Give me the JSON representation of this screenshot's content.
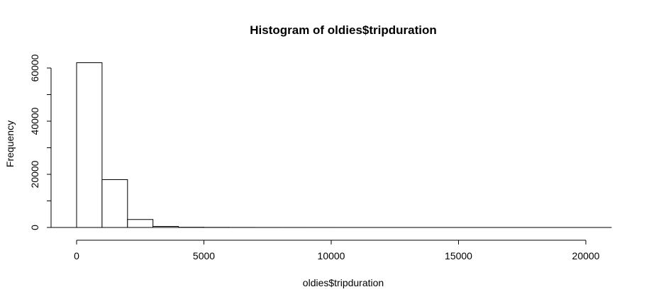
{
  "chart_data": {
    "type": "bar",
    "title": "Histogram of oldies$tripduration",
    "xlabel": "oldies$tripduration",
    "ylabel": "Frequency",
    "bin_width": 1000,
    "bins": [
      {
        "start": 0,
        "end": 1000,
        "count": 62000
      },
      {
        "start": 1000,
        "end": 2000,
        "count": 18000
      },
      {
        "start": 2000,
        "end": 3000,
        "count": 3000
      },
      {
        "start": 3000,
        "end": 4000,
        "count": 400
      },
      {
        "start": 4000,
        "end": 5000,
        "count": 80
      },
      {
        "start": 5000,
        "end": 6000,
        "count": 40
      },
      {
        "start": 6000,
        "end": 7000,
        "count": 20
      },
      {
        "start": 7000,
        "end": 8000,
        "count": 10
      },
      {
        "start": 8000,
        "end": 9000,
        "count": 5
      },
      {
        "start": 9000,
        "end": 10000,
        "count": 3
      },
      {
        "start": 10000,
        "end": 11000,
        "count": 2
      },
      {
        "start": 11000,
        "end": 12000,
        "count": 1
      },
      {
        "start": 12000,
        "end": 13000,
        "count": 1
      },
      {
        "start": 13000,
        "end": 14000,
        "count": 1
      },
      {
        "start": 14000,
        "end": 15000,
        "count": 1
      },
      {
        "start": 15000,
        "end": 16000,
        "count": 1
      },
      {
        "start": 16000,
        "end": 17000,
        "count": 1
      },
      {
        "start": 17000,
        "end": 18000,
        "count": 1
      },
      {
        "start": 18000,
        "end": 19000,
        "count": 1
      },
      {
        "start": 19000,
        "end": 20000,
        "count": 1
      },
      {
        "start": 20000,
        "end": 21000,
        "count": 1
      }
    ],
    "x_ticks": [
      "0",
      "5000",
      "10000",
      "15000",
      "20000"
    ],
    "y_ticks": [
      "0",
      "20000",
      "40000",
      "60000"
    ],
    "y_minor_ticks": [
      10000,
      30000,
      50000
    ],
    "xlim": [
      0,
      21000
    ],
    "ylim": [
      0,
      62000
    ],
    "grid": false,
    "bar_fill": "#ffffff",
    "bar_stroke": "#000000"
  }
}
